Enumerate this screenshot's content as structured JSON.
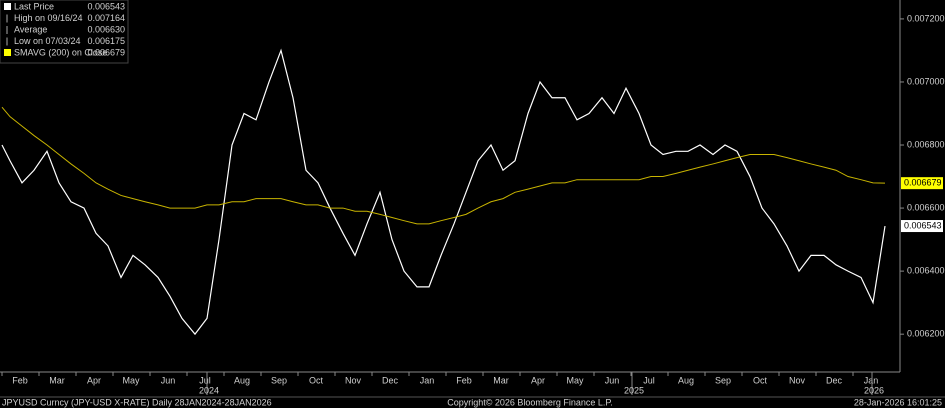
{
  "chart_data": {
    "type": "line",
    "categories": [
      null,
      "Feb",
      null,
      null,
      "Mar",
      null,
      null,
      "Apr",
      null,
      null,
      "May",
      null,
      null,
      "Jun",
      null,
      null,
      "Jul",
      null,
      null,
      "Aug",
      null,
      null,
      "Sep",
      null,
      null,
      "Oct",
      null,
      null,
      "Nov",
      null,
      null,
      "Dec",
      null,
      null,
      "Jan",
      null,
      null,
      "Feb",
      null,
      null,
      "Mar",
      null,
      null,
      "Apr",
      null,
      null,
      "May",
      null,
      null,
      "Jun",
      null,
      null,
      "Jul",
      null,
      null,
      "Aug",
      null,
      null,
      "Sep",
      null,
      null,
      "Oct",
      null,
      null,
      "Nov",
      null,
      null,
      "Dec",
      null,
      null,
      "Jan",
      null,
      null
    ],
    "year_labels": [
      "2024",
      "2025",
      "2026"
    ],
    "series": [
      {
        "name": "Last Price",
        "color": "#ffffff",
        "values": [
          0.0068,
          0.00675,
          0.00668,
          0.00672,
          0.00678,
          0.00668,
          0.00662,
          0.0066,
          0.00652,
          0.00648,
          0.00638,
          0.00645,
          0.00642,
          0.00638,
          0.00632,
          0.00625,
          0.0062,
          0.00625,
          0.0065,
          0.0068,
          0.0069,
          0.00688,
          0.007,
          0.0071,
          0.00695,
          0.00672,
          0.00668,
          0.0066,
          0.00652,
          0.00645,
          0.00655,
          0.00665,
          0.0065,
          0.0064,
          0.00635,
          0.00635,
          0.00645,
          0.00655,
          0.00665,
          0.00675,
          0.0068,
          0.00672,
          0.00675,
          0.0069,
          0.007,
          0.00695,
          0.00695,
          0.00688,
          0.0069,
          0.00695,
          0.0069,
          0.00698,
          0.0069,
          0.0068,
          0.00677,
          0.00678,
          0.00678,
          0.0068,
          0.00677,
          0.0068,
          0.00678,
          0.0067,
          0.0066,
          0.00655,
          0.00648,
          0.0064,
          0.00645,
          0.00645,
          0.00642,
          0.0064,
          0.00638,
          0.0063,
          0.006543
        ]
      },
      {
        "name": "SMAVG (200)  on Close",
        "color": "#c8b400",
        "values": [
          0.00692,
          0.00689,
          0.00686,
          0.00683,
          0.0068,
          0.00677,
          0.00674,
          0.00671,
          0.00668,
          0.00666,
          0.00664,
          0.00663,
          0.00662,
          0.00661,
          0.0066,
          0.0066,
          0.0066,
          0.00661,
          0.00661,
          0.00662,
          0.00662,
          0.00663,
          0.00663,
          0.00663,
          0.00662,
          0.00661,
          0.00661,
          0.0066,
          0.0066,
          0.00659,
          0.00659,
          0.00658,
          0.00657,
          0.00656,
          0.00655,
          0.00655,
          0.00656,
          0.00657,
          0.00658,
          0.0066,
          0.00662,
          0.00663,
          0.00665,
          0.00666,
          0.00667,
          0.00668,
          0.00668,
          0.00669,
          0.00669,
          0.00669,
          0.00669,
          0.00669,
          0.00669,
          0.0067,
          0.0067,
          0.00671,
          0.00672,
          0.00673,
          0.00674,
          0.00675,
          0.00676,
          0.00677,
          0.00677,
          0.00677,
          0.00676,
          0.00675,
          0.00674,
          0.00673,
          0.00672,
          0.0067,
          0.00669,
          0.00668,
          0.006679
        ]
      }
    ],
    "legend": [
      {
        "name": "Last Price",
        "value": "0.006543",
        "color": "#ffffff"
      },
      {
        "name": "High on 09/16/24",
        "value": "0.007164"
      },
      {
        "name": "Average",
        "value": "0.006630"
      },
      {
        "name": "Low on 07/03/24",
        "value": "0.006175"
      },
      {
        "name": "SMAVG (200)  on Close",
        "value": "0.006679",
        "color": "#ffff00"
      }
    ],
    "price_tags": [
      {
        "value": 0.006679,
        "label": "0.006679",
        "color": "#ffff00"
      },
      {
        "value": 0.006543,
        "label": "0.006543",
        "color": "#ffffff"
      }
    ],
    "ylim": [
      0.00608,
      0.00726
    ],
    "yticks": [
      {
        "value": 0.0062,
        "label": "0.006200"
      },
      {
        "value": 0.0064,
        "label": "0.006400"
      },
      {
        "value": 0.0066,
        "label": "0.006600"
      },
      {
        "value": 0.0068,
        "label": "0.006800"
      },
      {
        "value": 0.007,
        "label": "0.007000"
      },
      {
        "value": 0.0072,
        "label": "0.007200"
      }
    ],
    "footer_left": "JPYUSD Curncy (JPY-USD X-RATE) Daily 28JAN2024-28JAN2026",
    "footer_center": "Copyright© 2026 Bloomberg Finance L.P.",
    "footer_right": "28-Jan-2026 16:01:25"
  }
}
